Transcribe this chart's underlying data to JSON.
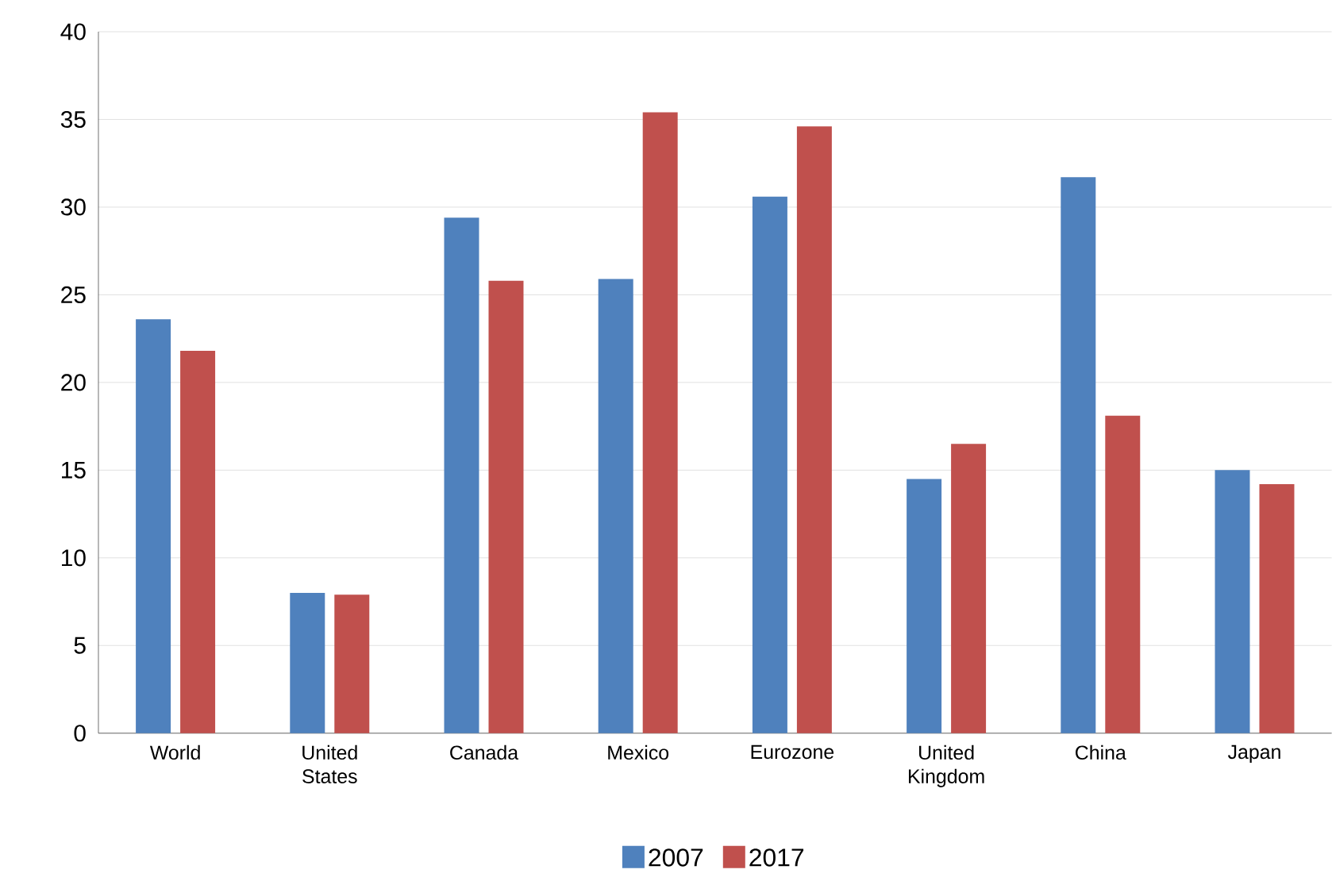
{
  "chart_data": {
    "type": "bar",
    "categories": [
      "World",
      "United States",
      "Canada",
      "Mexico",
      "Eurozone",
      "United Kingdom",
      "China",
      "Japan"
    ],
    "series": [
      {
        "name": "2007",
        "color": "#4f81bd",
        "values": [
          23.6,
          8.0,
          29.4,
          25.9,
          30.6,
          14.5,
          31.7,
          15.0
        ]
      },
      {
        "name": "2017",
        "color": "#c0504d",
        "values": [
          21.8,
          7.9,
          25.8,
          35.4,
          34.6,
          16.5,
          18.1,
          14.2
        ]
      }
    ],
    "ylim": [
      0,
      40
    ],
    "yticks": [
      0,
      5,
      10,
      15,
      20,
      25,
      30,
      35,
      40
    ],
    "grid": "y",
    "legend": "bottom"
  }
}
